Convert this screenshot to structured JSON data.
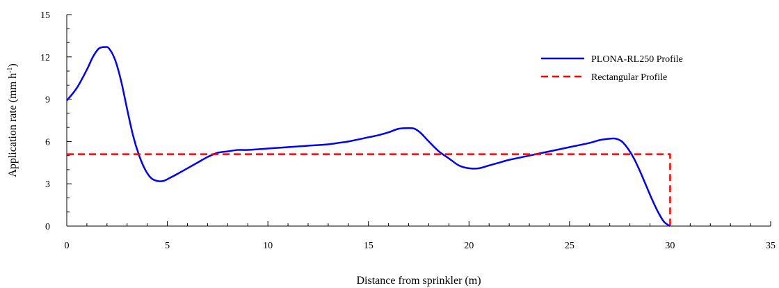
{
  "chart_data": {
    "type": "line",
    "xlabel": "Distance from sprinkler (m)",
    "ylabel": {
      "main": "Application rate (mm h",
      "sup": "-1",
      "close": ")"
    },
    "xlim": [
      0,
      35
    ],
    "ylim": [
      0,
      15
    ],
    "x_ticks": [
      0,
      5,
      10,
      15,
      20,
      25,
      30,
      35
    ],
    "y_ticks": [
      0,
      3,
      6,
      9,
      12,
      15
    ],
    "x_tick_labels": [
      "0",
      "5",
      "10",
      "15",
      "20",
      "25",
      "30",
      "35"
    ],
    "y_tick_labels": [
      "0",
      "3",
      "6",
      "9",
      "12",
      "15"
    ],
    "grid": false,
    "legend_position": "top-right",
    "series": [
      {
        "name": "PLONA-RL250 Profile",
        "color": "#0000ff",
        "style": "solid",
        "x": [
          0,
          0.5,
          1,
          1.3,
          1.6,
          1.9,
          2.1,
          2.4,
          2.7,
          3.0,
          3.3,
          3.6,
          3.9,
          4.2,
          4.5,
          4.8,
          5.1,
          5.5,
          6.0,
          6.5,
          7.0,
          7.5,
          8.0,
          8.5,
          9.0,
          10.0,
          11.0,
          12.0,
          13.0,
          13.5,
          14.0,
          15.0,
          15.5,
          16.0,
          16.5,
          17.0,
          17.3,
          17.6,
          18.0,
          18.5,
          19.0,
          19.5,
          20.0,
          20.5,
          21.0,
          21.5,
          22.0,
          23.0,
          24.0,
          25.0,
          26.0,
          26.5,
          27.0,
          27.3,
          27.6,
          27.9,
          28.2,
          28.5,
          28.8,
          29.1,
          29.4,
          29.7,
          30.0
        ],
        "y": [
          8.9,
          9.8,
          11.1,
          12.0,
          12.6,
          12.7,
          12.6,
          11.8,
          10.3,
          8.3,
          6.4,
          5.0,
          4.0,
          3.4,
          3.2,
          3.2,
          3.4,
          3.7,
          4.1,
          4.5,
          4.9,
          5.2,
          5.3,
          5.4,
          5.4,
          5.5,
          5.6,
          5.7,
          5.8,
          5.9,
          6.0,
          6.3,
          6.45,
          6.65,
          6.9,
          6.95,
          6.9,
          6.6,
          6.0,
          5.3,
          4.8,
          4.3,
          4.1,
          4.1,
          4.3,
          4.5,
          4.7,
          5.0,
          5.3,
          5.6,
          5.9,
          6.1,
          6.2,
          6.2,
          6.0,
          5.5,
          4.8,
          3.9,
          2.9,
          1.9,
          1.0,
          0.3,
          0.0
        ]
      },
      {
        "name": "Rectangular Profile",
        "color": "#ff0000",
        "style": "dashed",
        "x": [
          0,
          30,
          30
        ],
        "y": [
          5.1,
          5.1,
          0
        ]
      }
    ]
  }
}
